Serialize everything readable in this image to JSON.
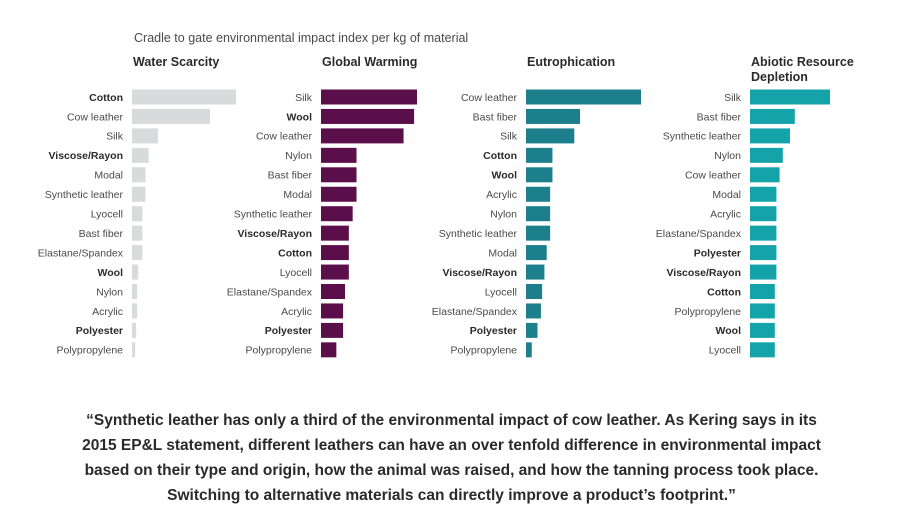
{
  "chart_data": {
    "type": "bar",
    "orientation": "horizontal",
    "title": "Cradle to gate environmental impact index per kg of material",
    "panels": [
      {
        "title": [
          "Water Scarcity"
        ],
        "color": "#d9dadb",
        "categories": [
          "Cotton",
          "Cow leather",
          "Silk",
          "Viscose/Rayon",
          "Modal",
          "Synthetic leather",
          "Lyocell",
          "Bast fiber",
          "Elastane/Spandex",
          "Wool",
          "Nylon",
          "Acrylic",
          "Polyester",
          "Polypropylene"
        ],
        "bold": [
          true,
          false,
          false,
          true,
          false,
          false,
          false,
          false,
          false,
          true,
          false,
          false,
          true,
          false
        ],
        "values": [
          100,
          75,
          25,
          16,
          13,
          13,
          10,
          10,
          10,
          6,
          5,
          5,
          4,
          3
        ]
      },
      {
        "title": [
          "Global Warming"
        ],
        "color": "#5b0f4a",
        "categories": [
          "Silk",
          "Wool",
          "Cow leather",
          "Nylon",
          "Bast fiber",
          "Modal",
          "Synthetic leather",
          "Viscose/Rayon",
          "Cotton",
          "Lyocell",
          "Elastane/Spandex",
          "Acrylic",
          "Polyester",
          "Polypropylene"
        ],
        "bold": [
          false,
          true,
          false,
          false,
          false,
          false,
          false,
          true,
          true,
          false,
          false,
          false,
          true,
          false
        ],
        "values": [
          100,
          97,
          86,
          37,
          37,
          37,
          33,
          29,
          29,
          29,
          25,
          23,
          23,
          16
        ]
      },
      {
        "title": [
          "Eutrophication"
        ],
        "color": "#1e7f8c",
        "categories": [
          "Cow leather",
          "Bast fiber",
          "Silk",
          "Cotton",
          "Wool",
          "Acrylic",
          "Nylon",
          "Synthetic leather",
          "Modal",
          "Viscose/Rayon",
          "Lyocell",
          "Elastane/Spandex",
          "Polyester",
          "Polypropylene"
        ],
        "bold": [
          false,
          false,
          false,
          true,
          true,
          false,
          false,
          false,
          false,
          true,
          false,
          false,
          true,
          false
        ],
        "values": [
          100,
          47,
          42,
          23,
          23,
          21,
          21,
          21,
          18,
          16,
          14,
          13,
          10,
          5
        ]
      },
      {
        "title": [
          "Abiotic Resource",
          "Depletion"
        ],
        "color": "#14a3a9",
        "categories": [
          "Silk",
          "Bast fiber",
          "Synthetic leather",
          "Nylon",
          "Cow leather",
          "Modal",
          "Acrylic",
          "Elastane/Spandex",
          "Polyester",
          "Viscose/Rayon",
          "Cotton",
          "Polypropylene",
          "Wool",
          "Lyocell"
        ],
        "bold": [
          false,
          false,
          false,
          false,
          false,
          false,
          false,
          false,
          true,
          true,
          true,
          false,
          true,
          false
        ],
        "values": [
          100,
          56,
          50,
          41,
          37,
          33,
          33,
          33,
          33,
          33,
          31,
          31,
          31,
          31
        ]
      }
    ]
  },
  "quote": {
    "lines": [
      "“Synthetic leather has only a third of the environmental impact of cow leather.  As Kering says in its",
      "2015 EP&L statement, different leathers can have an over tenfold difference in environmental impact",
      "based on their type and origin, how the animal was raised, and how the tanning process took place.",
      "Switching to alternative materials can directly improve a product’s footprint.”"
    ]
  }
}
